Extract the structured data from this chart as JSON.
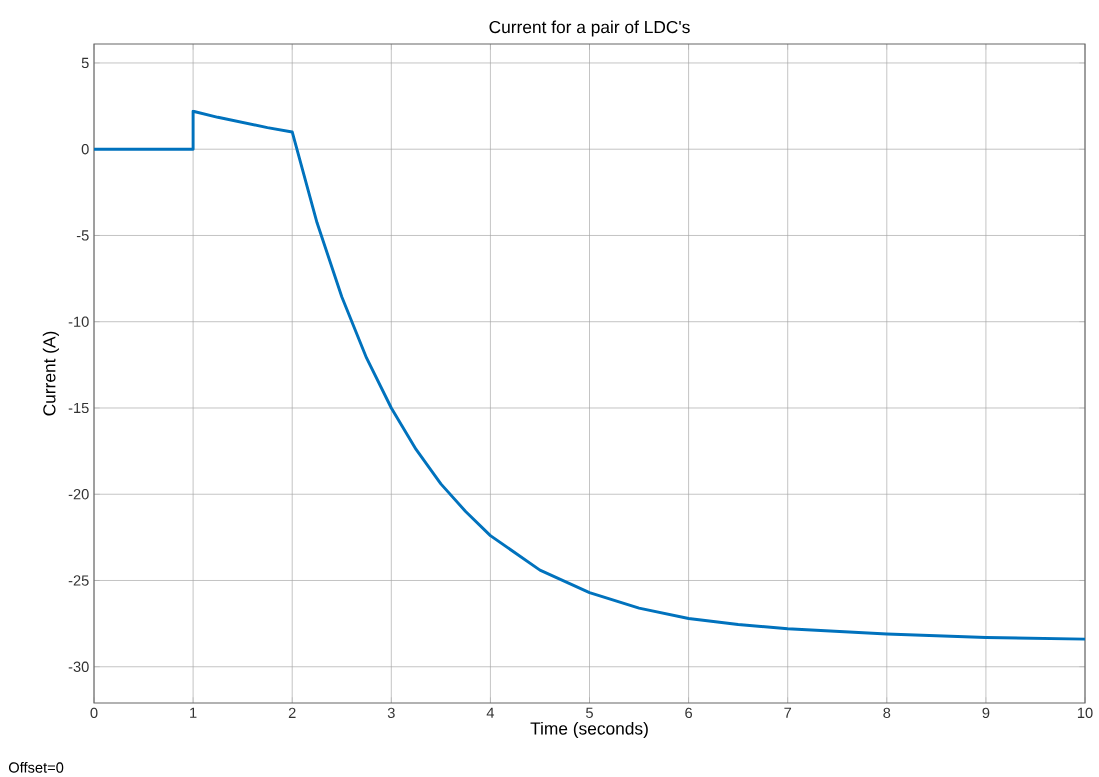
{
  "chart_data": {
    "type": "line",
    "title": "Current for a pair of LDC's",
    "xlabel": "Time (seconds)",
    "ylabel": "Current (A)",
    "annotations": [
      "Offset=0"
    ],
    "x": [
      0,
      1,
      1,
      1.25,
      1.5,
      1.75,
      2,
      2.25,
      2.5,
      2.75,
      3,
      3.25,
      3.5,
      3.75,
      4,
      4.5,
      5,
      5.5,
      6,
      6.5,
      7,
      8,
      9,
      10
    ],
    "series": [
      {
        "color": "#0072bd",
        "values": [
          0,
          0,
          2.2,
          1.85,
          1.55,
          1.25,
          1.0,
          -4.25,
          -8.55,
          -12.1,
          -15,
          -17.4,
          -19.4,
          -21.0,
          -22.4,
          -24.4,
          -25.7,
          -26.6,
          -27.2,
          -27.55,
          -27.8,
          -28.1,
          -28.3,
          -28.4
        ]
      }
    ],
    "xlim": [
      0,
      10
    ],
    "ylim": [
      -32.1,
      6.1
    ],
    "xticks": [
      0,
      1,
      2,
      3,
      4,
      5,
      6,
      7,
      8,
      9,
      10
    ],
    "yticks": [
      -30,
      -25,
      -20,
      -15,
      -10,
      -5,
      0,
      5
    ],
    "grid": true,
    "marker": "none",
    "line_style": "solid"
  }
}
